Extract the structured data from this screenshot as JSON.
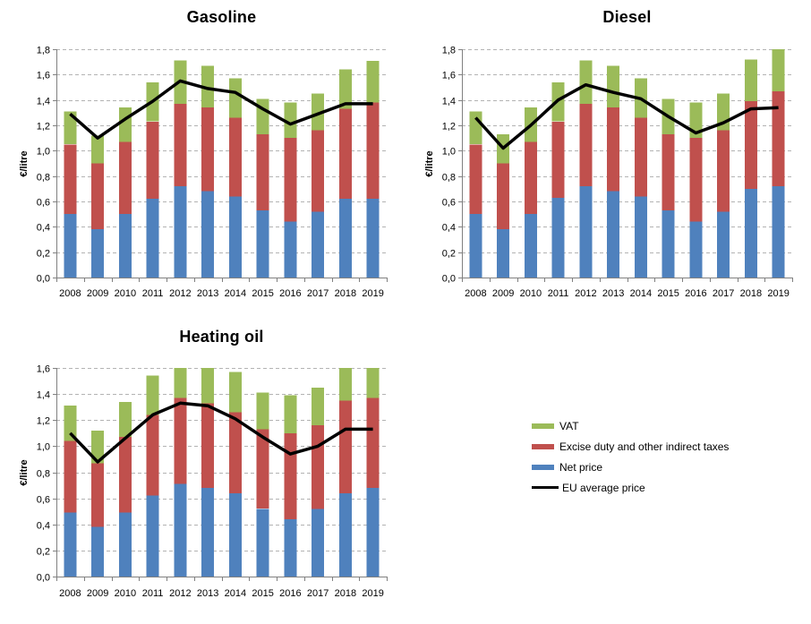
{
  "page": {
    "background": "#ffffff"
  },
  "legend": {
    "position": "bottom-right",
    "items": [
      {
        "label": "VAT",
        "color": "#9BBB59",
        "type": "box"
      },
      {
        "label": "Excise duty and other indirect taxes",
        "color": "#C0504D",
        "type": "box"
      },
      {
        "label": "Net price",
        "color": "#4F81BD",
        "type": "box"
      },
      {
        "label": "EU average price",
        "color": "#000000",
        "type": "line"
      }
    ]
  },
  "chart_data": [
    {
      "id": "gasoline",
      "type": "bar",
      "subtype": "stacked-bar-with-line",
      "title": "Gasoline",
      "xlabel": "",
      "ylabel": "€/litre",
      "ylim": [
        0,
        1.8
      ],
      "ytick_step": 0.2,
      "yticks": [
        "0,0",
        "0,2",
        "0,4",
        "0,6",
        "0,8",
        "1,0",
        "1,2",
        "1,4",
        "1,6",
        "1,8"
      ],
      "decimal_separator": ",",
      "grid": true,
      "categories": [
        "2008",
        "2009",
        "2010",
        "2011",
        "2012",
        "2013",
        "2014",
        "2015",
        "2016",
        "2017",
        "2018",
        "2019"
      ],
      "series": [
        {
          "name": "Net price",
          "type": "bar",
          "color": "#4F81BD",
          "values": [
            0.5,
            0.38,
            0.5,
            0.62,
            0.72,
            0.68,
            0.64,
            0.53,
            0.44,
            0.52,
            0.62,
            0.62
          ]
        },
        {
          "name": "Excise duty and other indirect taxes",
          "type": "bar",
          "color": "#C0504D",
          "values": [
            0.55,
            0.52,
            0.57,
            0.61,
            0.65,
            0.66,
            0.62,
            0.6,
            0.66,
            0.64,
            0.71,
            0.76
          ]
        },
        {
          "name": "VAT",
          "type": "bar",
          "color": "#9BBB59",
          "values": [
            0.26,
            0.22,
            0.27,
            0.31,
            0.34,
            0.33,
            0.31,
            0.28,
            0.28,
            0.29,
            0.31,
            0.33
          ]
        },
        {
          "name": "EU average price",
          "type": "line",
          "color": "#000000",
          "values": [
            1.29,
            1.1,
            1.25,
            1.39,
            1.55,
            1.49,
            1.46,
            1.33,
            1.21,
            1.29,
            1.37,
            1.37
          ]
        }
      ]
    },
    {
      "id": "diesel",
      "type": "bar",
      "subtype": "stacked-bar-with-line",
      "title": "Diesel",
      "xlabel": "",
      "ylabel": "€/litre",
      "ylim": [
        0,
        1.8
      ],
      "ytick_step": 0.2,
      "yticks": [
        "0,0",
        "0,2",
        "0,4",
        "0,6",
        "0,8",
        "1,0",
        "1,2",
        "1,4",
        "1,6",
        "1,8"
      ],
      "decimal_separator": ",",
      "grid": true,
      "categories": [
        "2008",
        "2009",
        "2010",
        "2011",
        "2012",
        "2013",
        "2014",
        "2015",
        "2016",
        "2017",
        "2018",
        "2019"
      ],
      "series": [
        {
          "name": "Net price",
          "type": "bar",
          "color": "#4F81BD",
          "values": [
            0.5,
            0.38,
            0.5,
            0.63,
            0.72,
            0.68,
            0.64,
            0.53,
            0.44,
            0.52,
            0.7,
            0.72
          ]
        },
        {
          "name": "Excise duty and other indirect taxes",
          "type": "bar",
          "color": "#C0504D",
          "values": [
            0.55,
            0.52,
            0.57,
            0.6,
            0.65,
            0.66,
            0.62,
            0.6,
            0.66,
            0.64,
            0.69,
            0.75
          ]
        },
        {
          "name": "VAT",
          "type": "bar",
          "color": "#9BBB59",
          "values": [
            0.26,
            0.23,
            0.27,
            0.31,
            0.34,
            0.33,
            0.31,
            0.28,
            0.28,
            0.29,
            0.33,
            0.33
          ]
        },
        {
          "name": "EU average price",
          "type": "line",
          "color": "#000000",
          "values": [
            1.26,
            1.02,
            1.2,
            1.4,
            1.52,
            1.46,
            1.41,
            1.27,
            1.14,
            1.22,
            1.33,
            1.34
          ]
        }
      ]
    },
    {
      "id": "heating-oil",
      "type": "bar",
      "subtype": "stacked-bar-with-line",
      "title": "Heating oil",
      "xlabel": "",
      "ylabel": "€/litre",
      "ylim": [
        0,
        1.6
      ],
      "ytick_step": 0.2,
      "yticks": [
        "0,0",
        "0,2",
        "0,4",
        "0,6",
        "0,8",
        "1,0",
        "1,2",
        "1,4",
        "1,6"
      ],
      "decimal_separator": ",",
      "grid": true,
      "categories": [
        "2008",
        "2009",
        "2010",
        "2011",
        "2012",
        "2013",
        "2014",
        "2015",
        "2016",
        "2017",
        "2018",
        "2019"
      ],
      "series": [
        {
          "name": "Net price",
          "type": "bar",
          "color": "#4F81BD",
          "values": [
            0.49,
            0.38,
            0.49,
            0.62,
            0.71,
            0.68,
            0.64,
            0.52,
            0.44,
            0.52,
            0.64,
            0.68
          ]
        },
        {
          "name": "Excise duty and other indirect taxes",
          "type": "bar",
          "color": "#C0504D",
          "values": [
            0.55,
            0.49,
            0.58,
            0.62,
            0.66,
            0.65,
            0.62,
            0.61,
            0.66,
            0.64,
            0.71,
            0.69
          ]
        },
        {
          "name": "VAT",
          "type": "bar",
          "color": "#9BBB59",
          "values": [
            0.27,
            0.25,
            0.27,
            0.3,
            0.23,
            0.27,
            0.31,
            0.28,
            0.29,
            0.29,
            0.25,
            0.23
          ]
        },
        {
          "name": "EU average price",
          "type": "line",
          "color": "#000000",
          "values": [
            1.1,
            0.88,
            1.06,
            1.24,
            1.33,
            1.31,
            1.21,
            1.07,
            0.94,
            1.0,
            1.13,
            1.13
          ]
        }
      ]
    }
  ]
}
